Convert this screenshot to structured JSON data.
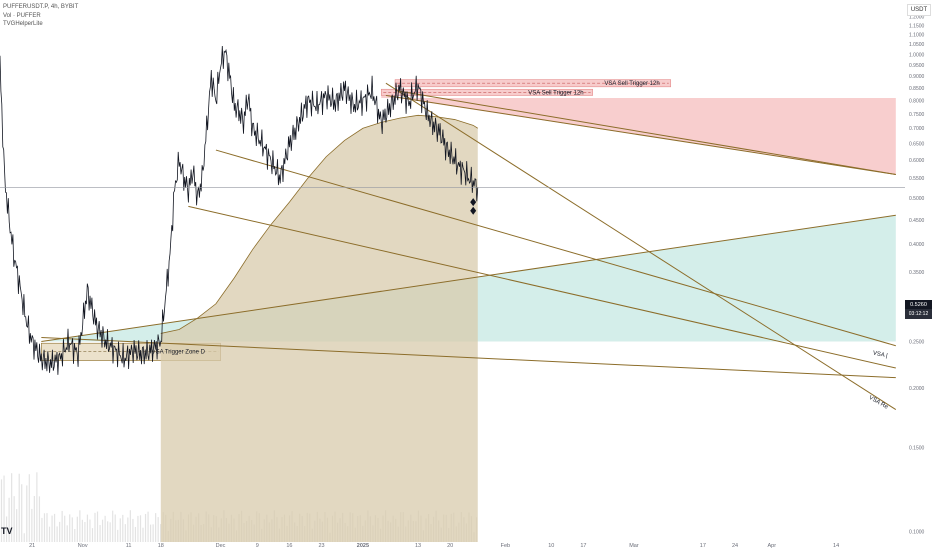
{
  "header": {
    "symbol_line": "PUFFERUSDT.P, 4h, BYBIT",
    "volume_line": "Vol · PUFFER",
    "indicator_line": "TVGHelperLite"
  },
  "currency_label": "USDT",
  "logo_text": "TV",
  "current_price": "0.5260",
  "current_price_countdown": "03:12:12",
  "colors": {
    "price_line": "#131722",
    "trend_line": "#8c6d2a",
    "sell_zone": "#f3a6a6",
    "buy_zone": "#b7e3dc",
    "vwap_fill": "#d8cbac",
    "volume": "#d7d7d7"
  },
  "annotations": {
    "sell_trigger_1": "VSA Sell Trigger 12h",
    "sell_trigger_2": "VSA Sell Trigger 12h",
    "trigger_zone": "VSA Trigger Zone D",
    "line_label_1": "VSA |",
    "line_label_2": "VSA Re"
  },
  "chart_data": {
    "type": "line",
    "title": "PUFFERUSDT.P, 4h, BYBIT",
    "y_scale": "log",
    "ylim": [
      0.095,
      1.3
    ],
    "y_ticks": [
      "1.2000",
      "1.1000",
      "1.0000",
      "0.9000",
      "0.8000",
      "0.7000",
      "0.6000",
      "0.5000",
      "0.4000",
      "0.3000",
      "0.2000",
      "0.1000"
    ],
    "y_tick_values": [
      1.2,
      1.1,
      1.0,
      0.9,
      0.8,
      0.7,
      0.6,
      0.5,
      0.4,
      0.3,
      0.2,
      0.1
    ],
    "y_minor_ticks": [
      "1.1500",
      "1.0500",
      "0.9500",
      "0.8500",
      "0.7500",
      "0.6500",
      "0.5500",
      "0.4500",
      "0.3500",
      "0.2500",
      "0.1500"
    ],
    "y_minor_values": [
      1.15,
      1.05,
      0.95,
      0.85,
      0.75,
      0.65,
      0.55,
      0.45,
      0.35,
      0.25,
      0.15
    ],
    "x_ticks": [
      "21",
      "Nov",
      "11",
      "18",
      "Dec",
      "9",
      "16",
      "23",
      "2025",
      "13",
      "20",
      "Feb",
      "10",
      "17",
      "Mar",
      "17",
      "24",
      "Apr",
      "14"
    ],
    "x_tick_days": [
      0,
      11,
      21,
      28,
      41,
      49,
      56,
      63,
      72,
      84,
      91,
      103,
      113,
      120,
      131,
      146,
      153,
      161,
      175
    ],
    "x_range_days": [
      -7,
      190
    ],
    "price_series": {
      "days": [
        -7,
        -6,
        -5,
        -4,
        -3,
        -2,
        -1,
        0,
        2,
        4,
        6,
        8,
        10,
        12,
        14,
        16,
        18,
        20,
        22,
        24,
        26,
        28,
        30,
        31,
        32,
        33,
        34,
        35,
        36,
        37,
        38,
        39,
        40,
        41,
        42,
        43,
        44,
        45,
        46,
        47,
        48,
        50,
        52,
        54,
        56,
        58,
        60,
        62,
        64,
        66,
        68,
        70,
        72,
        74,
        76,
        78,
        80,
        82,
        83,
        84,
        85,
        86,
        87,
        88,
        89,
        90,
        91,
        92,
        93,
        94,
        95,
        96,
        97
      ],
      "values": [
        0.95,
        0.55,
        0.45,
        0.38,
        0.34,
        0.3,
        0.27,
        0.25,
        0.23,
        0.225,
        0.23,
        0.25,
        0.235,
        0.32,
        0.27,
        0.25,
        0.24,
        0.23,
        0.24,
        0.235,
        0.24,
        0.25,
        0.38,
        0.52,
        0.6,
        0.55,
        0.52,
        0.57,
        0.5,
        0.55,
        0.7,
        0.9,
        0.8,
        0.95,
        1.02,
        0.9,
        0.78,
        0.76,
        0.72,
        0.82,
        0.7,
        0.65,
        0.6,
        0.55,
        0.65,
        0.72,
        0.8,
        0.78,
        0.82,
        0.79,
        0.85,
        0.78,
        0.8,
        0.84,
        0.72,
        0.78,
        0.85,
        0.79,
        0.83,
        0.86,
        0.8,
        0.75,
        0.72,
        0.7,
        0.68,
        0.64,
        0.62,
        0.6,
        0.58,
        0.57,
        0.55,
        0.54,
        0.526
      ]
    },
    "vwap_series": {
      "days": [
        28,
        32,
        36,
        40,
        44,
        48,
        52,
        56,
        60,
        64,
        68,
        72,
        76,
        80,
        84,
        88,
        92,
        96,
        97
      ],
      "values": [
        0.26,
        0.265,
        0.28,
        0.3,
        0.34,
        0.39,
        0.44,
        0.49,
        0.55,
        0.61,
        0.66,
        0.7,
        0.72,
        0.735,
        0.745,
        0.74,
        0.73,
        0.71,
        0.7
      ]
    },
    "trend_lines": [
      {
        "from": [
          77,
          0.87
        ],
        "to": [
          188,
          0.18
        ]
      },
      {
        "from": [
          77,
          0.82
        ],
        "to": [
          188,
          0.56
        ]
      },
      {
        "from": [
          79,
          0.84
        ],
        "to": [
          188,
          0.56
        ]
      },
      {
        "from": [
          40,
          0.63
        ],
        "to": [
          188,
          0.245
        ]
      },
      {
        "from": [
          34,
          0.48
        ],
        "to": [
          188,
          0.22
        ]
      },
      {
        "from": [
          2,
          0.255
        ],
        "to": [
          188,
          0.21
        ]
      },
      {
        "from": [
          2,
          0.25
        ],
        "to": [
          188,
          0.46
        ]
      }
    ],
    "zones": [
      {
        "name": "VSA Sell Trigger 12h",
        "x": [
          79,
          139
        ],
        "y": [
          0.855,
          0.885
        ],
        "dashed_level": 0.87
      },
      {
        "name": "VSA Sell Trigger 12h",
        "x": [
          76,
          122
        ],
        "y": [
          0.82,
          0.845
        ],
        "dashed_level": 0.832
      },
      {
        "name": "VSA Trigger Zone D",
        "x": [
          2,
          41
        ],
        "y": [
          0.228,
          0.248
        ],
        "dashed_level": 0.238
      }
    ],
    "sell_region": {
      "x": [
        76,
        188
      ],
      "top": 0.81,
      "bottom_from": 0.82,
      "bottom_to": 0.56
    },
    "buy_region": {
      "x": [
        2,
        188
      ],
      "bottom": 0.25,
      "top_from": 0.25,
      "top_to": 0.46
    },
    "vwap_region": {
      "x": [
        28,
        97
      ],
      "bottom": 0.095
    },
    "current_price": 0.526,
    "crosshair_price": 0.526
  }
}
